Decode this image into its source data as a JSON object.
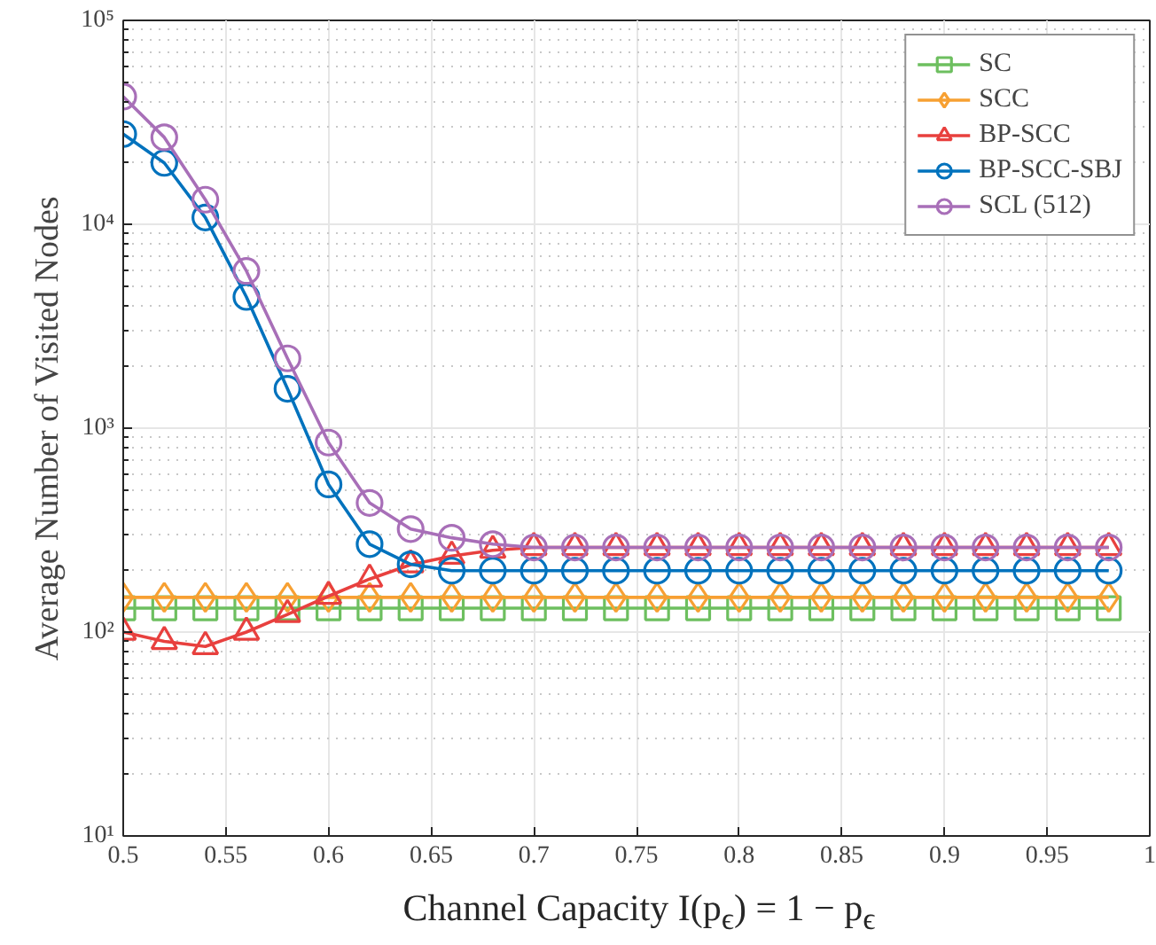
{
  "chart_data": {
    "type": "line",
    "xlabel": "Channel Capacity I(p$_{ϵ}$) = 1 − p$_{ϵ}$",
    "ylabel": "Average Number of Visited Nodes",
    "x": [
      0.5,
      0.52,
      0.54,
      0.56,
      0.58,
      0.6,
      0.62,
      0.64,
      0.66,
      0.68,
      0.7,
      0.72,
      0.74,
      0.76,
      0.78,
      0.8,
      0.82,
      0.84,
      0.86,
      0.88,
      0.9,
      0.92,
      0.94,
      0.96,
      0.98
    ],
    "series": [
      {
        "name": "SC",
        "color": "#6dbf5f",
        "marker": "square",
        "values": [
          131,
          131,
          131,
          131,
          131,
          131,
          131,
          131,
          131,
          131,
          131,
          131,
          131,
          131,
          131,
          131,
          131,
          131,
          131,
          131,
          131,
          131,
          131,
          131,
          131
        ]
      },
      {
        "name": "SCC",
        "color": "#f7a032",
        "marker": "diamond",
        "values": [
          148,
          148,
          148,
          148,
          148,
          148,
          148,
          148,
          148,
          148,
          148,
          148,
          148,
          148,
          148,
          148,
          148,
          148,
          148,
          148,
          148,
          148,
          148,
          148,
          148
        ]
      },
      {
        "name": "BP-SCC",
        "color": "#e8403e",
        "marker": "triangle",
        "values": [
          100,
          90,
          85,
          100,
          122,
          150,
          182,
          214,
          236,
          252,
          260,
          260,
          260,
          260,
          260,
          260,
          260,
          260,
          260,
          260,
          260,
          260,
          260,
          260,
          260
        ]
      },
      {
        "name": "BP-SCC-SBJ",
        "color": "#0072bd",
        "marker": "circle",
        "values": [
          27700,
          20000,
          10800,
          4400,
          1560,
          530,
          270,
          215,
          200,
          200,
          200,
          200,
          200,
          200,
          200,
          200,
          200,
          200,
          200,
          200,
          200,
          200,
          200,
          200,
          200
        ]
      },
      {
        "name": "SCL (512)",
        "color": "#a86fb8",
        "marker": "circle",
        "values": [
          42300,
          26700,
          13200,
          5900,
          2200,
          850,
          430,
          320,
          290,
          270,
          260,
          260,
          260,
          260,
          260,
          260,
          260,
          260,
          260,
          260,
          260,
          260,
          260,
          260,
          260
        ]
      }
    ],
    "log": "y",
    "xlim": [
      0.5,
      1
    ],
    "ylim": [
      10,
      100000
    ],
    "xticks": [
      0.5,
      0.55,
      0.6,
      0.65,
      0.7,
      0.75,
      0.8,
      0.85,
      0.9,
      0.95,
      1
    ],
    "yticks": [
      {
        "value": 10,
        "label": "10¹"
      },
      {
        "value": 100,
        "label": "10²"
      },
      {
        "value": 1000,
        "label": "10³"
      },
      {
        "value": 10000,
        "label": "10⁴"
      },
      {
        "value": 100000,
        "label": "10⁵"
      }
    ],
    "grid": true,
    "legend": "top right"
  }
}
